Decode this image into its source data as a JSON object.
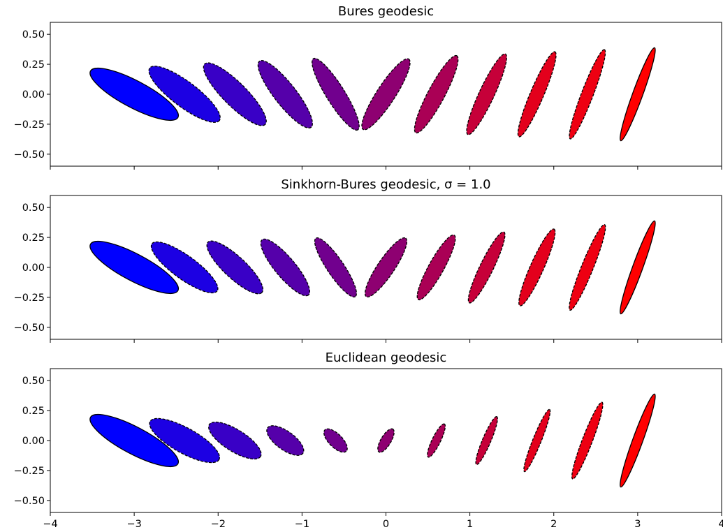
{
  "chart_data": [
    {
      "type": "scatter",
      "title": "Bures geodesic",
      "xlim": [
        -4,
        4
      ],
      "ylim": [
        -0.6,
        0.6
      ],
      "x_ticks": [
        -4,
        -3,
        -2,
        -1,
        0,
        1,
        2,
        3,
        4
      ],
      "y_ticks": [
        0.5,
        0.25,
        0.0,
        -0.25,
        -0.5
      ],
      "y_tick_labels": [
        "0.50",
        "0.25",
        "0.00",
        "−0.25",
        "−0.50"
      ],
      "show_x_tick_labels": false,
      "ellipses": [
        {
          "cx": -3.0,
          "cy": 0.0,
          "rx": 0.59,
          "ry": 0.16,
          "angle": -28,
          "color": "#0000ff",
          "dashed": false
        },
        {
          "cx": -2.4,
          "cy": 0.0,
          "rx": 0.52,
          "ry": 0.15,
          "angle": -37,
          "color": "#1c00e3",
          "dashed": true
        },
        {
          "cx": -1.8,
          "cy": 0.0,
          "rx": 0.51,
          "ry": 0.14,
          "angle": -45,
          "color": "#3900c6",
          "dashed": true
        },
        {
          "cx": -1.2,
          "cy": 0.0,
          "rx": 0.5,
          "ry": 0.13,
          "angle": -52,
          "color": "#5500aa",
          "dashed": true
        },
        {
          "cx": -0.6,
          "cy": 0.0,
          "rx": 0.5,
          "ry": 0.11,
          "angle": -58,
          "color": "#71008e",
          "dashed": true
        },
        {
          "cx": 0.0,
          "cy": 0.0,
          "rx": 0.5,
          "ry": 0.11,
          "angle": 57,
          "color": "#8e0071",
          "dashed": true
        },
        {
          "cx": 0.6,
          "cy": 0.0,
          "rx": 0.52,
          "ry": 0.1,
          "angle": 62,
          "color": "#aa0055",
          "dashed": true
        },
        {
          "cx": 1.2,
          "cy": 0.0,
          "rx": 0.53,
          "ry": 0.09,
          "angle": 65,
          "color": "#c60039",
          "dashed": true
        },
        {
          "cx": 1.8,
          "cy": 0.0,
          "rx": 0.55,
          "ry": 0.08,
          "angle": 67,
          "color": "#e3001c",
          "dashed": true
        },
        {
          "cx": 2.4,
          "cy": 0.0,
          "rx": 0.57,
          "ry": 0.07,
          "angle": 69,
          "color": "#ee0012",
          "dashed": true
        },
        {
          "cx": 3.0,
          "cy": 0.0,
          "rx": 0.59,
          "ry": 0.06,
          "angle": 70,
          "color": "#ff0000",
          "dashed": false
        }
      ]
    },
    {
      "type": "scatter",
      "title": "Sinkhorn-Bures geodesic, σ = 1.0",
      "xlim": [
        -4,
        4
      ],
      "ylim": [
        -0.6,
        0.6
      ],
      "x_ticks": [
        -4,
        -3,
        -2,
        -1,
        0,
        1,
        2,
        3,
        4
      ],
      "y_ticks": [
        0.5,
        0.25,
        0.0,
        -0.25,
        -0.5
      ],
      "y_tick_labels": [
        "0.50",
        "0.25",
        "0.00",
        "−0.25",
        "−0.50"
      ],
      "show_x_tick_labels": false,
      "ellipses": [
        {
          "cx": -3.0,
          "cy": 0.0,
          "rx": 0.59,
          "ry": 0.16,
          "angle": -28,
          "color": "#0000ff",
          "dashed": false
        },
        {
          "cx": -2.4,
          "cy": 0.0,
          "rx": 0.48,
          "ry": 0.14,
          "angle": -36,
          "color": "#1c00e3",
          "dashed": true
        },
        {
          "cx": -1.8,
          "cy": 0.0,
          "rx": 0.44,
          "ry": 0.13,
          "angle": -43,
          "color": "#3900c6",
          "dashed": true
        },
        {
          "cx": -1.2,
          "cy": 0.0,
          "rx": 0.43,
          "ry": 0.12,
          "angle": -50,
          "color": "#5500aa",
          "dashed": true
        },
        {
          "cx": -0.6,
          "cy": 0.0,
          "rx": 0.42,
          "ry": 0.1,
          "angle": -56,
          "color": "#71008e",
          "dashed": true
        },
        {
          "cx": 0.0,
          "cy": 0.0,
          "rx": 0.42,
          "ry": 0.1,
          "angle": 56,
          "color": "#8e0071",
          "dashed": true
        },
        {
          "cx": 0.6,
          "cy": 0.0,
          "rx": 0.44,
          "ry": 0.09,
          "angle": 61,
          "color": "#aa0055",
          "dashed": true
        },
        {
          "cx": 1.2,
          "cy": 0.0,
          "rx": 0.47,
          "ry": 0.08,
          "angle": 64,
          "color": "#c60039",
          "dashed": true
        },
        {
          "cx": 1.8,
          "cy": 0.0,
          "rx": 0.5,
          "ry": 0.08,
          "angle": 66,
          "color": "#e3001c",
          "dashed": true
        },
        {
          "cx": 2.4,
          "cy": 0.0,
          "rx": 0.55,
          "ry": 0.07,
          "angle": 68,
          "color": "#ee0012",
          "dashed": true
        },
        {
          "cx": 3.0,
          "cy": 0.0,
          "rx": 0.59,
          "ry": 0.06,
          "angle": 70,
          "color": "#ff0000",
          "dashed": false
        }
      ]
    },
    {
      "type": "scatter",
      "title": "Euclidean geodesic",
      "xlim": [
        -4,
        4
      ],
      "ylim": [
        -0.6,
        0.6
      ],
      "x_ticks": [
        -4,
        -3,
        -2,
        -1,
        0,
        1,
        2,
        3,
        4
      ],
      "x_tick_labels": [
        "−4",
        "−3",
        "−2",
        "−1",
        "0",
        "1",
        "2",
        "3",
        "4"
      ],
      "y_ticks": [
        0.5,
        0.25,
        0.0,
        -0.25,
        -0.5
      ],
      "y_tick_labels": [
        "0.50",
        "0.25",
        "0.00",
        "−0.25",
        "−0.50"
      ],
      "show_x_tick_labels": true,
      "ellipses": [
        {
          "cx": -3.0,
          "cy": 0.0,
          "rx": 0.59,
          "ry": 0.16,
          "angle": -28,
          "color": "#0000ff",
          "dashed": false
        },
        {
          "cx": -2.4,
          "cy": 0.0,
          "rx": 0.47,
          "ry": 0.15,
          "angle": -29,
          "color": "#1c00e3",
          "dashed": true
        },
        {
          "cx": -1.8,
          "cy": 0.0,
          "rx": 0.36,
          "ry": 0.13,
          "angle": -32,
          "color": "#3900c6",
          "dashed": true
        },
        {
          "cx": -1.2,
          "cy": 0.0,
          "rx": 0.26,
          "ry": 0.11,
          "angle": -36,
          "color": "#5500aa",
          "dashed": true
        },
        {
          "cx": -0.6,
          "cy": 0.0,
          "rx": 0.18,
          "ry": 0.08,
          "angle": -45,
          "color": "#71008e",
          "dashed": true
        },
        {
          "cx": 0.0,
          "cy": 0.0,
          "rx": 0.16,
          "ry": 0.06,
          "angle": 59,
          "color": "#8e0071",
          "dashed": true
        },
        {
          "cx": 0.6,
          "cy": 0.0,
          "rx": 0.22,
          "ry": 0.05,
          "angle": 64,
          "color": "#aa0055",
          "dashed": true
        },
        {
          "cx": 1.2,
          "cy": 0.0,
          "rx": 0.31,
          "ry": 0.05,
          "angle": 67,
          "color": "#c60039",
          "dashed": true
        },
        {
          "cx": 1.8,
          "cy": 0.0,
          "rx": 0.4,
          "ry": 0.05,
          "angle": 68,
          "color": "#e3001c",
          "dashed": true
        },
        {
          "cx": 2.4,
          "cy": 0.0,
          "rx": 0.49,
          "ry": 0.06,
          "angle": 69,
          "color": "#ee0012",
          "dashed": true
        },
        {
          "cx": 3.0,
          "cy": 0.0,
          "rx": 0.59,
          "ry": 0.06,
          "angle": 70,
          "color": "#ff0000",
          "dashed": false
        }
      ]
    }
  ]
}
